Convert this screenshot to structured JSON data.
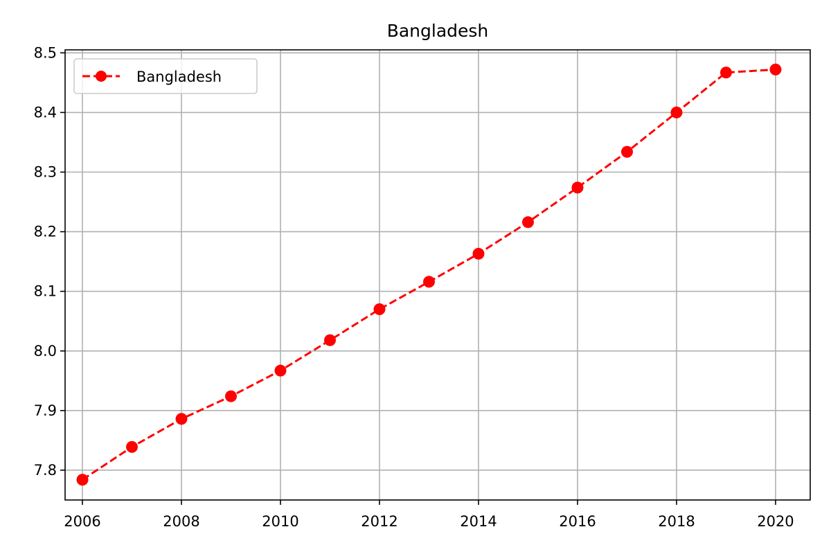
{
  "chart_data": {
    "type": "line",
    "title": "Bangladesh",
    "xlabel": "",
    "ylabel": "",
    "xlim": [
      2005.65,
      2020.7
    ],
    "ylim": [
      7.75,
      8.505
    ],
    "xticks": [
      2006,
      2008,
      2010,
      2012,
      2014,
      2016,
      2018,
      2020
    ],
    "xtick_labels": [
      "2006",
      "2008",
      "2010",
      "2012",
      "2014",
      "2016",
      "2018",
      "2020"
    ],
    "yticks": [
      7.8,
      7.9,
      8.0,
      8.1,
      8.2,
      8.3,
      8.4,
      8.5
    ],
    "ytick_labels": [
      "7.8",
      "7.9",
      "8.0",
      "8.1",
      "8.2",
      "8.3",
      "8.4",
      "8.5"
    ],
    "grid": true,
    "legend_position": "top-left",
    "series": [
      {
        "name": "Bangladesh",
        "color": "#ff0000",
        "line_style": "dashed",
        "marker": "circle",
        "x": [
          2006,
          2007,
          2008,
          2009,
          2010,
          2011,
          2012,
          2013,
          2014,
          2015,
          2016,
          2017,
          2018,
          2019,
          2020
        ],
        "y": [
          7.784,
          7.839,
          7.886,
          7.924,
          7.967,
          8.018,
          8.07,
          8.116,
          8.163,
          8.216,
          8.274,
          8.334,
          8.4,
          8.467,
          8.472
        ]
      }
    ]
  }
}
